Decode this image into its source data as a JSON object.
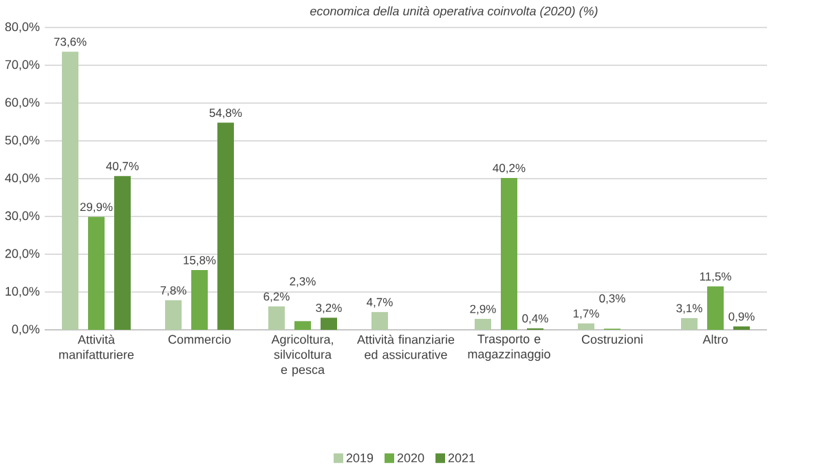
{
  "chart_data": {
    "type": "bar",
    "title": "economica della unità operativa coinvolta (2020) (%)",
    "categories": [
      "Attività manifatturiere",
      "Commercio",
      "Agricoltura, silvicoltura e pesca",
      "Attività finanziarie ed assicurative",
      "Trasporto e magazzinaggio",
      "Costruzioni",
      "Altro"
    ],
    "series": [
      {
        "name": "2019",
        "color": "#b4cfa6",
        "values": [
          73.6,
          7.8,
          6.2,
          4.7,
          2.9,
          1.7,
          3.1
        ],
        "value_labels": [
          "73,6%",
          "7,8%",
          "6,2%",
          "4,7%",
          "2,9%",
          "1,7%",
          "3,1%"
        ]
      },
      {
        "name": "2020",
        "color": "#70ad47",
        "values": [
          29.9,
          15.8,
          2.3,
          null,
          40.2,
          0.3,
          11.5
        ],
        "value_labels": [
          "29,9%",
          "15,8%",
          "2,3%",
          null,
          "40,2%",
          "0,3%",
          "11,5%"
        ]
      },
      {
        "name": "2021",
        "color": "#5b9038",
        "values": [
          40.7,
          54.8,
          3.2,
          null,
          0.4,
          null,
          0.9
        ],
        "value_labels": [
          "40,7%",
          "54,8%",
          "3,2%",
          null,
          "0,4%",
          null,
          "0,9%"
        ]
      }
    ],
    "ylim": [
      0,
      80
    ],
    "yticks": [
      {
        "value": 0,
        "label": "0,0%"
      },
      {
        "value": 10,
        "label": "10,0%"
      },
      {
        "value": 20,
        "label": "20,0%"
      },
      {
        "value": 30,
        "label": "30,0%"
      },
      {
        "value": 40,
        "label": "40,0%"
      },
      {
        "value": 50,
        "label": "50,0%"
      },
      {
        "value": 60,
        "label": "60,0%"
      },
      {
        "value": 70,
        "label": "70,0%"
      },
      {
        "value": 80,
        "label": "80,0%"
      }
    ],
    "grid": "y",
    "legend": "bottom"
  }
}
